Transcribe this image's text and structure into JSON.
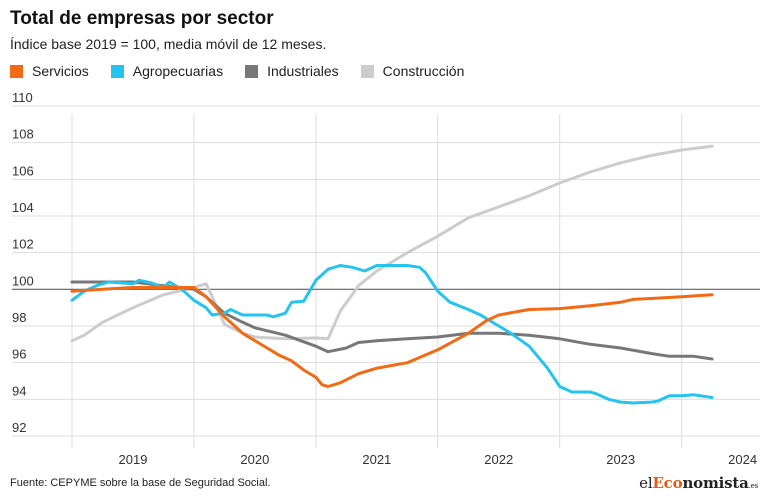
{
  "title": "Total de empresas por sector",
  "subtitle": "Índice base 2019 = 100, media móvil de 12 meses.",
  "footer": "Fuente: CEPYME sobre la base de Seguridad Social.",
  "brand": {
    "part1": "el",
    "part2": "Eco",
    "part3": "nomista",
    "part4": ".es"
  },
  "colors": {
    "servicios": "#f26a13",
    "agropecuarias": "#25c4ee",
    "industriales": "#777777",
    "construccion": "#cccccc",
    "baseline": "#666666",
    "grid": "#dddddd"
  },
  "chart_data": {
    "type": "line",
    "title": "Total de empresas por sector",
    "subtitle": "Índice base 2019 = 100, media móvil de 12 meses.",
    "xlabel": "",
    "ylabel": "",
    "ylim": [
      92,
      110
    ],
    "yticks": [
      92,
      94,
      96,
      98,
      100,
      102,
      104,
      106,
      108,
      110
    ],
    "xlim": [
      2018.5,
      2024.2
    ],
    "xticks": [
      {
        "value": 2019,
        "label": "2019"
      },
      {
        "value": 2020,
        "label": "2020"
      },
      {
        "value": 2021,
        "label": "2021"
      },
      {
        "value": 2022,
        "label": "2022"
      },
      {
        "value": 2023,
        "label": "2023"
      },
      {
        "value": 2024,
        "label": "2024"
      }
    ],
    "xgrid": [
      2018.5,
      2019.5,
      2020.5,
      2021.5,
      2022.5,
      2023.5
    ],
    "baseline": 100,
    "grid": true,
    "legend_position": "top-left",
    "series": [
      {
        "name": "Servicios",
        "color": "#f26a13",
        "points": [
          [
            2018.5,
            99.9
          ],
          [
            2018.75,
            100.0
          ],
          [
            2019.0,
            100.1
          ],
          [
            2019.25,
            100.1
          ],
          [
            2019.5,
            100.1
          ],
          [
            2019.6,
            99.6
          ],
          [
            2019.75,
            98.5
          ],
          [
            2019.9,
            97.6
          ],
          [
            2020.0,
            97.2
          ],
          [
            2020.1,
            96.8
          ],
          [
            2020.2,
            96.4
          ],
          [
            2020.3,
            96.1
          ],
          [
            2020.4,
            95.6
          ],
          [
            2020.5,
            95.2
          ],
          [
            2020.55,
            94.8
          ],
          [
            2020.6,
            94.7
          ],
          [
            2020.7,
            94.9
          ],
          [
            2020.85,
            95.4
          ],
          [
            2021.0,
            95.7
          ],
          [
            2021.25,
            96.0
          ],
          [
            2021.5,
            96.7
          ],
          [
            2021.75,
            97.6
          ],
          [
            2021.9,
            98.3
          ],
          [
            2022.0,
            98.6
          ],
          [
            2022.25,
            98.9
          ],
          [
            2022.5,
            98.95
          ],
          [
            2022.75,
            99.1
          ],
          [
            2023.0,
            99.3
          ],
          [
            2023.1,
            99.45
          ],
          [
            2023.25,
            99.5
          ],
          [
            2023.5,
            99.6
          ],
          [
            2023.75,
            99.7
          ]
        ]
      },
      {
        "name": "Agropecuarias",
        "color": "#25c4ee",
        "points": [
          [
            2018.5,
            99.4
          ],
          [
            2018.6,
            99.9
          ],
          [
            2018.7,
            100.2
          ],
          [
            2018.8,
            100.4
          ],
          [
            2019.0,
            100.3
          ],
          [
            2019.05,
            100.5
          ],
          [
            2019.15,
            100.35
          ],
          [
            2019.25,
            100.1
          ],
          [
            2019.3,
            100.4
          ],
          [
            2019.4,
            100.0
          ],
          [
            2019.5,
            99.4
          ],
          [
            2019.6,
            99.0
          ],
          [
            2019.65,
            98.6
          ],
          [
            2019.75,
            98.7
          ],
          [
            2019.8,
            98.9
          ],
          [
            2019.9,
            98.6
          ],
          [
            2020.0,
            98.6
          ],
          [
            2020.1,
            98.6
          ],
          [
            2020.15,
            98.5
          ],
          [
            2020.25,
            98.7
          ],
          [
            2020.3,
            99.3
          ],
          [
            2020.4,
            99.35
          ],
          [
            2020.5,
            100.5
          ],
          [
            2020.6,
            101.1
          ],
          [
            2020.7,
            101.3
          ],
          [
            2020.8,
            101.2
          ],
          [
            2020.9,
            101.0
          ],
          [
            2021.0,
            101.3
          ],
          [
            2021.1,
            101.3
          ],
          [
            2021.25,
            101.3
          ],
          [
            2021.35,
            101.2
          ],
          [
            2021.4,
            100.9
          ],
          [
            2021.5,
            99.9
          ],
          [
            2021.6,
            99.3
          ],
          [
            2021.75,
            98.9
          ],
          [
            2021.85,
            98.6
          ],
          [
            2021.9,
            98.4
          ],
          [
            2022.0,
            98.0
          ],
          [
            2022.1,
            97.6
          ],
          [
            2022.25,
            96.9
          ],
          [
            2022.4,
            95.7
          ],
          [
            2022.5,
            94.7
          ],
          [
            2022.6,
            94.4
          ],
          [
            2022.75,
            94.4
          ],
          [
            2022.8,
            94.3
          ],
          [
            2022.9,
            94.0
          ],
          [
            2023.0,
            93.85
          ],
          [
            2023.1,
            93.8
          ],
          [
            2023.25,
            93.85
          ],
          [
            2023.3,
            93.9
          ],
          [
            2023.4,
            94.2
          ],
          [
            2023.5,
            94.2
          ],
          [
            2023.6,
            94.25
          ],
          [
            2023.75,
            94.1
          ]
        ]
      },
      {
        "name": "Industriales",
        "color": "#777777",
        "points": [
          [
            2018.5,
            100.4
          ],
          [
            2018.75,
            100.4
          ],
          [
            2019.0,
            100.4
          ],
          [
            2019.25,
            100.2
          ],
          [
            2019.5,
            100.0
          ],
          [
            2019.6,
            99.6
          ],
          [
            2019.75,
            98.7
          ],
          [
            2019.9,
            98.2
          ],
          [
            2020.0,
            97.9
          ],
          [
            2020.25,
            97.5
          ],
          [
            2020.5,
            96.9
          ],
          [
            2020.6,
            96.6
          ],
          [
            2020.75,
            96.8
          ],
          [
            2020.85,
            97.1
          ],
          [
            2021.0,
            97.2
          ],
          [
            2021.25,
            97.3
          ],
          [
            2021.5,
            97.4
          ],
          [
            2021.75,
            97.6
          ],
          [
            2022.0,
            97.6
          ],
          [
            2022.25,
            97.5
          ],
          [
            2022.5,
            97.3
          ],
          [
            2022.75,
            97.0
          ],
          [
            2023.0,
            96.8
          ],
          [
            2023.25,
            96.5
          ],
          [
            2023.4,
            96.35
          ],
          [
            2023.6,
            96.35
          ],
          [
            2023.75,
            96.2
          ]
        ]
      },
      {
        "name": "Construcción",
        "color": "#cccccc",
        "points": [
          [
            2018.5,
            97.2
          ],
          [
            2018.6,
            97.5
          ],
          [
            2018.75,
            98.2
          ],
          [
            2019.0,
            99.0
          ],
          [
            2019.25,
            99.7
          ],
          [
            2019.5,
            100.1
          ],
          [
            2019.6,
            100.3
          ],
          [
            2019.65,
            99.6
          ],
          [
            2019.75,
            98.1
          ],
          [
            2019.9,
            97.6
          ],
          [
            2020.0,
            97.4
          ],
          [
            2020.25,
            97.3
          ],
          [
            2020.5,
            97.35
          ],
          [
            2020.6,
            97.3
          ],
          [
            2020.7,
            98.8
          ],
          [
            2020.85,
            100.2
          ],
          [
            2021.0,
            101.0
          ],
          [
            2021.25,
            102.0
          ],
          [
            2021.5,
            102.9
          ],
          [
            2021.75,
            103.9
          ],
          [
            2022.0,
            104.5
          ],
          [
            2022.25,
            105.1
          ],
          [
            2022.5,
            105.8
          ],
          [
            2022.75,
            106.4
          ],
          [
            2023.0,
            106.9
          ],
          [
            2023.25,
            107.3
          ],
          [
            2023.5,
            107.6
          ],
          [
            2023.75,
            107.8
          ]
        ]
      }
    ]
  }
}
